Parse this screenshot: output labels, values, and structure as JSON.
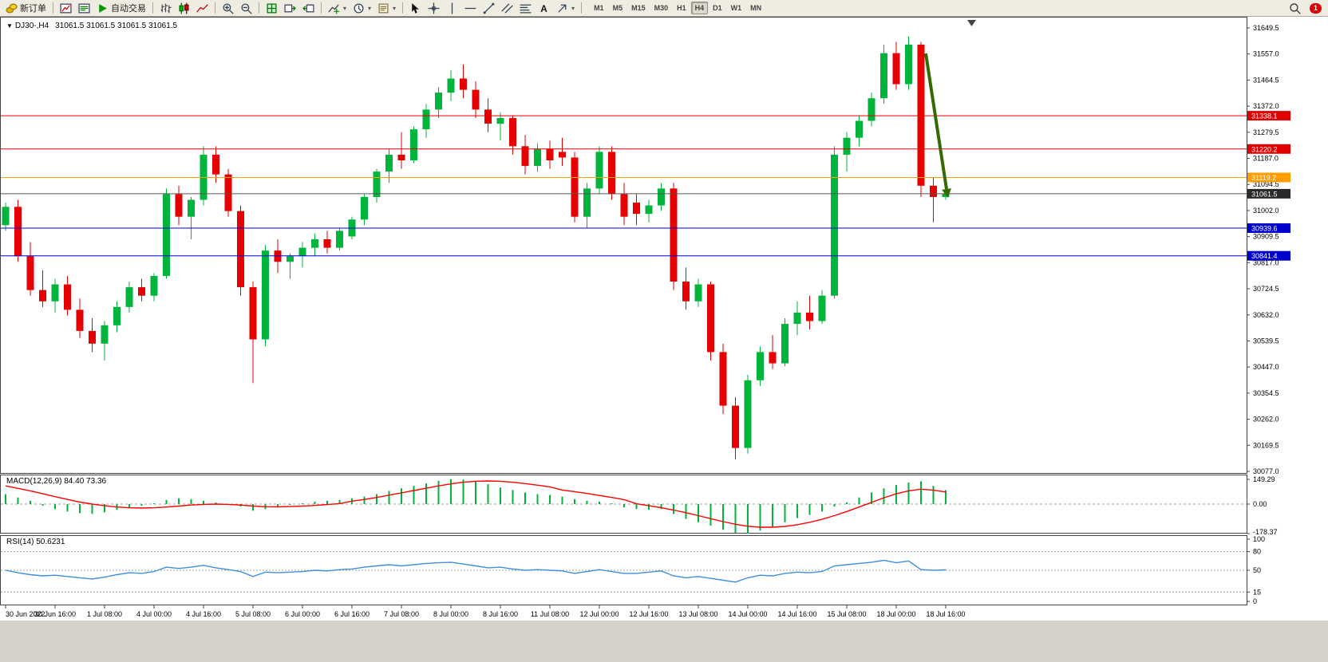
{
  "toolbar": {
    "new_order_label": "新订单",
    "auto_trading_label": "自动交易",
    "timeframes": [
      "M1",
      "M5",
      "M15",
      "M30",
      "H1",
      "H4",
      "D1",
      "W1",
      "MN"
    ],
    "active_timeframe": "H4",
    "notification_count": "1"
  },
  "chart": {
    "title": "DJ30-,H4",
    "ohlc": "31061.5 31061.5 31061.5 31061.5",
    "macd_label": "MACD(12,26,9) 84.40 73.36",
    "rsi_label": "RSI(14) 50.6231"
  },
  "chart_data": {
    "type": "candlestick",
    "symbol": "DJ30-",
    "timeframe": "H4",
    "colors": {
      "up": "#00b43c",
      "down": "#e60000",
      "macd_hist": "#00b43c",
      "macd_signal": "#ff0000",
      "rsi_line": "#3f8fde",
      "grid_dash": "#a0a0a0",
      "arrow": "#336b00"
    },
    "candles": [
      [
        30950,
        31030,
        30930,
        31015
      ],
      [
        31015,
        31040,
        30820,
        30840
      ],
      [
        30840,
        30890,
        30700,
        30720
      ],
      [
        30720,
        30790,
        30660,
        30680
      ],
      [
        30680,
        30760,
        30640,
        30740
      ],
      [
        30740,
        30770,
        30630,
        30650
      ],
      [
        30650,
        30690,
        30550,
        30575
      ],
      [
        30575,
        30620,
        30500,
        30530
      ],
      [
        30530,
        30610,
        30470,
        30595
      ],
      [
        30595,
        30680,
        30570,
        30660
      ],
      [
        30660,
        30750,
        30640,
        30730
      ],
      [
        30730,
        30760,
        30680,
        30700
      ],
      [
        30700,
        30780,
        30680,
        30770
      ],
      [
        30770,
        31080,
        30760,
        31060
      ],
      [
        31060,
        31090,
        30950,
        30980
      ],
      [
        30980,
        31050,
        30900,
        31040
      ],
      [
        31040,
        31230,
        31020,
        31200
      ],
      [
        31200,
        31230,
        31100,
        31130
      ],
      [
        31130,
        31150,
        30980,
        31000
      ],
      [
        31000,
        31020,
        30700,
        30730
      ],
      [
        30730,
        30750,
        30390,
        30545
      ],
      [
        30545,
        30880,
        30520,
        30860
      ],
      [
        30860,
        30900,
        30780,
        30820
      ],
      [
        30820,
        30850,
        30760,
        30840
      ],
      [
        30840,
        30890,
        30800,
        30870
      ],
      [
        30870,
        30920,
        30840,
        30900
      ],
      [
        30900,
        30930,
        30850,
        30870
      ],
      [
        30870,
        30940,
        30860,
        30930
      ],
      [
        30910,
        30980,
        30900,
        30970
      ],
      [
        30970,
        31060,
        30950,
        31050
      ],
      [
        31050,
        31150,
        31030,
        31140
      ],
      [
        31140,
        31220,
        31100,
        31200
      ],
      [
        31200,
        31280,
        31150,
        31180
      ],
      [
        31180,
        31300,
        31170,
        31290
      ],
      [
        31290,
        31380,
        31260,
        31360
      ],
      [
        31360,
        31440,
        31330,
        31420
      ],
      [
        31420,
        31500,
        31390,
        31470
      ],
      [
        31470,
        31520,
        31400,
        31430
      ],
      [
        31430,
        31460,
        31330,
        31360
      ],
      [
        31360,
        31400,
        31280,
        31310
      ],
      [
        31310,
        31350,
        31250,
        31330
      ],
      [
        31330,
        31340,
        31200,
        31230
      ],
      [
        31230,
        31270,
        31130,
        31160
      ],
      [
        31160,
        31240,
        31140,
        31220
      ],
      [
        31220,
        31250,
        31150,
        31180
      ],
      [
        31210,
        31260,
        31160,
        31190
      ],
      [
        31190,
        31210,
        30960,
        30980
      ],
      [
        30980,
        31100,
        30940,
        31080
      ],
      [
        31080,
        31230,
        31060,
        31210
      ],
      [
        31210,
        31230,
        31040,
        31060
      ],
      [
        31060,
        31100,
        30950,
        30980
      ],
      [
        31030,
        31060,
        30950,
        30990
      ],
      [
        30990,
        31040,
        30960,
        31020
      ],
      [
        31020,
        31100,
        31000,
        31080
      ],
      [
        31080,
        31100,
        30720,
        30750
      ],
      [
        30750,
        30800,
        30650,
        30680
      ],
      [
        30680,
        30760,
        30660,
        30740
      ],
      [
        30740,
        30750,
        30470,
        30500
      ],
      [
        30500,
        30530,
        30280,
        30310
      ],
      [
        30310,
        30340,
        30120,
        30160
      ],
      [
        30160,
        30420,
        30140,
        30400
      ],
      [
        30400,
        30520,
        30380,
        30500
      ],
      [
        30500,
        30560,
        30440,
        30460
      ],
      [
        30460,
        30620,
        30450,
        30600
      ],
      [
        30600,
        30680,
        30560,
        30640
      ],
      [
        30640,
        30700,
        30580,
        30610
      ],
      [
        30610,
        30720,
        30600,
        30700
      ],
      [
        30700,
        31230,
        30690,
        31200
      ],
      [
        31200,
        31280,
        31140,
        31260
      ],
      [
        31260,
        31340,
        31230,
        31320
      ],
      [
        31320,
        31420,
        31300,
        31400
      ],
      [
        31400,
        31590,
        31380,
        31560
      ],
      [
        31560,
        31600,
        31430,
        31450
      ],
      [
        31450,
        31620,
        31430,
        31590
      ],
      [
        31590,
        31600,
        31050,
        31090
      ],
      [
        31090,
        31120,
        30960,
        31050
      ],
      [
        31050,
        31090,
        31040,
        31061.5
      ]
    ],
    "price_axis_labels": [
      "31649.5",
      "31557.0",
      "31464.5",
      "31372.0",
      "31279.5",
      "31187.0",
      "31094.5",
      "31002.0",
      "30909.5",
      "30817.0",
      "30724.5",
      "30632.0",
      "30539.5",
      "30447.0",
      "30354.5",
      "30262.0",
      "30169.5",
      "30077.0"
    ],
    "hlines": [
      {
        "price": 31338.1,
        "label": "31338.1",
        "color": "#e00000",
        "badge": "#e00000"
      },
      {
        "price": 31220.2,
        "label": "31220.2",
        "color": "#e00000",
        "badge": "#e00000"
      },
      {
        "price": 31119.2,
        "label": "31119.2",
        "color": "#ffa000",
        "badge": "#ff9c00"
      },
      {
        "price": 31061.5,
        "label": "31061.5",
        "color": "#555555",
        "badge": "#2a2a2a"
      },
      {
        "price": 30939.6,
        "label": "30939.6",
        "color": "#0000e0",
        "badge": "#0000cc"
      },
      {
        "price": 30841.4,
        "label": "30841.4",
        "color": "#0000e0",
        "badge": "#0000cc"
      }
    ],
    "time_labels": [
      {
        "idx": 0,
        "text": "30 Jun 2022"
      },
      {
        "idx": 4,
        "text": "30 Jun 16:00"
      },
      {
        "idx": 8,
        "text": "1 Jul 08:00"
      },
      {
        "idx": 12,
        "text": "4 Jul 00:00"
      },
      {
        "idx": 16,
        "text": "4 Jul 16:00"
      },
      {
        "idx": 20,
        "text": "5 Jul 08:00"
      },
      {
        "idx": 24,
        "text": "6 Jul 00:00"
      },
      {
        "idx": 28,
        "text": "6 Jul 16:00"
      },
      {
        "idx": 32,
        "text": "7 Jul 08:00"
      },
      {
        "idx": 36,
        "text": "8 Jul 00:00"
      },
      {
        "idx": 40,
        "text": "8 Jul 16:00"
      },
      {
        "idx": 44,
        "text": "11 Jul 08:00"
      },
      {
        "idx": 48,
        "text": "12 Jul 00:00"
      },
      {
        "idx": 52,
        "text": "12 Jul 16:00"
      },
      {
        "idx": 56,
        "text": "13 Jul 08:00"
      },
      {
        "idx": 60,
        "text": "14 Jul 00:00"
      },
      {
        "idx": 64,
        "text": "14 Jul 16:00"
      },
      {
        "idx": 68,
        "text": "15 Jul 08:00"
      },
      {
        "idx": 72,
        "text": "18 Jul 00:00"
      },
      {
        "idx": 76,
        "text": "18 Jul 16:00"
      }
    ],
    "macd": {
      "label": "MACD(12,26,9) 84.40 73.36",
      "axis_labels": [
        "149.29",
        "0.00",
        "-178.37"
      ],
      "histogram": [
        60,
        40,
        20,
        -10,
        -30,
        -45,
        -55,
        -60,
        -50,
        -35,
        -20,
        -10,
        5,
        25,
        35,
        30,
        20,
        10,
        -5,
        -15,
        -40,
        -30,
        -15,
        -5,
        5,
        15,
        20,
        25,
        35,
        45,
        60,
        80,
        95,
        110,
        125,
        140,
        150,
        148,
        135,
        120,
        100,
        85,
        70,
        60,
        55,
        45,
        30,
        20,
        15,
        5,
        -20,
        -30,
        -35,
        -30,
        -60,
        -90,
        -110,
        -130,
        -155,
        -175,
        -178,
        -160,
        -140,
        -110,
        -85,
        -65,
        -45,
        -15,
        10,
        40,
        70,
        95,
        115,
        130,
        138,
        110,
        84.4
      ],
      "signal": [
        110,
        95,
        80,
        62,
        45,
        28,
        12,
        0,
        -10,
        -18,
        -22,
        -24,
        -22,
        -18,
        -12,
        -6,
        -2,
        0,
        -2,
        -6,
        -12,
        -16,
        -17,
        -15,
        -12,
        -8,
        -3,
        3,
        18,
        28,
        40,
        54,
        68,
        82,
        96,
        110,
        122,
        132,
        138,
        140,
        138,
        132,
        124,
        114,
        104,
        85,
        75,
        64,
        52,
        40,
        27,
        2,
        -10,
        -22,
        -36,
        -52,
        -70,
        -88,
        -106,
        -122,
        -134,
        -140,
        -140,
        -135,
        -125,
        -110,
        -92,
        -70,
        -45,
        -18,
        10,
        38,
        62,
        80,
        90,
        84,
        73.36
      ]
    },
    "rsi": {
      "label": "RSI(14) 50.6231",
      "axis_labels": [
        "100",
        "80",
        "50",
        "15",
        "0"
      ],
      "levels": [
        80,
        50,
        15
      ],
      "values": [
        50,
        46,
        43,
        41,
        42,
        40,
        38,
        36,
        39,
        43,
        46,
        45,
        48,
        55,
        53,
        55,
        58,
        54,
        51,
        48,
        40,
        47,
        46,
        47,
        48,
        50,
        49,
        51,
        52,
        55,
        57,
        59,
        57,
        59,
        61,
        62,
        63,
        60,
        57,
        54,
        55,
        52,
        50,
        51,
        50,
        49,
        45,
        48,
        51,
        48,
        45,
        45,
        47,
        49,
        41,
        38,
        40,
        37,
        34,
        31,
        38,
        42,
        41,
        45,
        47,
        46,
        48,
        57,
        59,
        61,
        63,
        66,
        62,
        65,
        51,
        50,
        50.62
      ],
      "last_value": 50.6231
    },
    "annotation_arrow": {
      "from": [
        1160,
        46
      ],
      "to": [
        1186,
        216
      ],
      "color": "#336b00"
    }
  }
}
